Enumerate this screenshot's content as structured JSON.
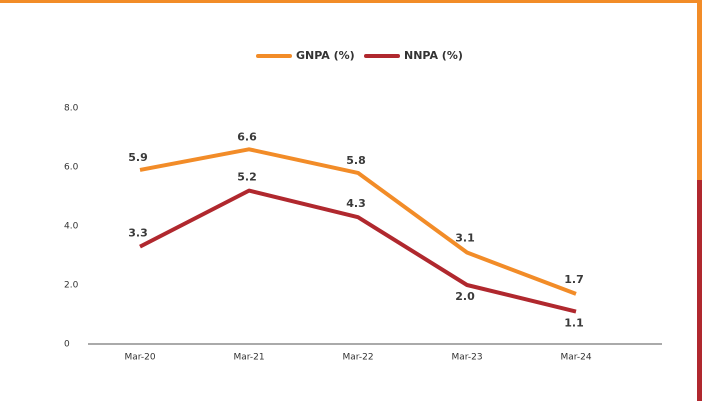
{
  "chart_data": {
    "type": "line",
    "categories": [
      "Mar-20",
      "Mar-21",
      "Mar-22",
      "Mar-23",
      "Mar-24"
    ],
    "series": [
      {
        "name": "GNPA (%)",
        "color": "#f28c28",
        "values": [
          5.9,
          6.6,
          5.8,
          3.1,
          1.7
        ],
        "value_labels": [
          "5.9",
          "6.6",
          "5.8",
          "3.1",
          "1.7"
        ]
      },
      {
        "name": "NNPA (%)",
        "color": "#b0282e",
        "values": [
          3.3,
          5.2,
          4.3,
          2.0,
          1.1
        ],
        "value_labels": [
          "3.3",
          "5.2",
          "4.3",
          "2.0",
          "1.1"
        ]
      }
    ],
    "ylim": [
      0,
      8
    ],
    "yticks": [
      0,
      {
        "value": 2,
        "label": "2.0"
      },
      {
        "value": 4,
        "label": "4.0"
      },
      {
        "value": 6,
        "label": "6.0"
      },
      {
        "value": 8,
        "label": "8.0"
      }
    ],
    "legend": "top"
  }
}
